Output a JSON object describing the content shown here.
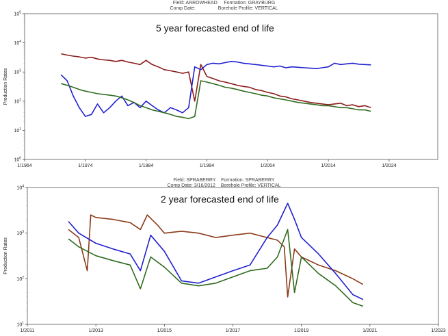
{
  "charts": [
    {
      "header": {
        "line1": "Field: ARROWHEAD     Formation: GRAYBURG",
        "line2": "Comp Date:                 Borehole Profile: VERTICAL"
      },
      "annotation": "5 year forecasted end of life",
      "ylabel": "Production Rates",
      "xticks": [
        "1/1964",
        "1/1974",
        "1/1984",
        "1/1994",
        "1/2004",
        "1/2014",
        "1/2024"
      ],
      "ytick_exponents": [
        "0",
        "1",
        "2",
        "3",
        "4",
        "5"
      ]
    },
    {
      "header": {
        "line1": "Field: SPRABERRY    Formation: SPRABERRY",
        "line2": "Comp Date: 3/16/2012    Borehole Profile: VERTICAL"
      },
      "annotation": "2 year forecasted end of life",
      "ylabel": "Production Rates",
      "xticks": [
        "1/2011",
        "1/2013",
        "1/2015",
        "1/2017",
        "1/2019",
        "1/2021",
        "1/2023"
      ],
      "ytick_exponents": [
        "1",
        "2",
        "3",
        "4"
      ]
    }
  ],
  "chart_data": [
    {
      "type": "line",
      "title": "",
      "xlabel": "",
      "ylabel": "Production Rates",
      "yscale": "log",
      "xlim": [
        1964,
        2032
      ],
      "ylim": [
        1,
        100000
      ],
      "series": [
        {
          "color": "#8b1a1a",
          "x": [
            1970,
            1971,
            1972,
            1973,
            1974,
            1975,
            1976,
            1977,
            1978,
            1979,
            1980,
            1981,
            1982,
            1983,
            1984,
            1985,
            1986,
            1987,
            1988,
            1989,
            1990,
            1991,
            1992,
            1993,
            1994,
            1995,
            1996,
            1997,
            1998,
            1999,
            2000,
            2001,
            2002,
            2003,
            2004,
            2005,
            2006,
            2007,
            2008,
            2009,
            2010,
            2011,
            2012,
            2013,
            2014,
            2015,
            2016,
            2017,
            2018,
            2019,
            2020,
            2021
          ],
          "y": [
            4200,
            3800,
            3500,
            3300,
            3000,
            3200,
            2800,
            2600,
            2500,
            2300,
            2500,
            2200,
            2000,
            1800,
            2500,
            1800,
            1500,
            1200,
            1100,
            1000,
            900,
            1000,
            100,
            1800,
            700,
            600,
            500,
            450,
            400,
            350,
            320,
            300,
            250,
            230,
            200,
            180,
            150,
            140,
            120,
            110,
            100,
            90,
            85,
            80,
            75,
            80,
            85,
            70,
            75,
            65,
            70,
            60
          ]
        },
        {
          "color": "#1f1fcf",
          "x": [
            1970,
            1971,
            1972,
            1973,
            1974,
            1975,
            1976,
            1977,
            1978,
            1979,
            1980,
            1981,
            1982,
            1983,
            1984,
            1985,
            1986,
            1987,
            1988,
            1989,
            1990,
            1991,
            1992,
            1993,
            1994,
            1995,
            1996,
            1997,
            1998,
            1999,
            2000,
            2001,
            2002,
            2003,
            2004,
            2005,
            2006,
            2007,
            2008,
            2009,
            2010,
            2011,
            2012,
            2013,
            2014,
            2015,
            2016,
            2017,
            2018,
            2019,
            2020,
            2021
          ],
          "y": [
            800,
            500,
            150,
            60,
            30,
            35,
            80,
            40,
            60,
            100,
            150,
            70,
            90,
            60,
            100,
            70,
            50,
            40,
            60,
            50,
            40,
            60,
            1500,
            1200,
            1800,
            2000,
            1900,
            2100,
            2300,
            2200,
            2000,
            1900,
            1800,
            1700,
            1600,
            1500,
            1600,
            1400,
            1500,
            1450,
            1400,
            1350,
            1300,
            1400,
            1500,
            2000,
            1800,
            1900,
            2000,
            1850,
            1800,
            1750
          ]
        },
        {
          "color": "#2e6b1f",
          "x": [
            1970,
            1971,
            1972,
            1973,
            1974,
            1975,
            1976,
            1977,
            1978,
            1979,
            1980,
            1981,
            1982,
            1983,
            1984,
            1985,
            1986,
            1987,
            1988,
            1989,
            1990,
            1991,
            1992,
            1993,
            1994,
            1995,
            1996,
            1997,
            1998,
            1999,
            2000,
            2001,
            2002,
            2003,
            2004,
            2005,
            2006,
            2007,
            2008,
            2009,
            2010,
            2011,
            2012,
            2013,
            2014,
            2015,
            2016,
            2017,
            2018,
            2019,
            2020,
            2021
          ],
          "y": [
            400,
            350,
            300,
            250,
            220,
            200,
            180,
            170,
            160,
            150,
            130,
            110,
            90,
            70,
            60,
            50,
            45,
            40,
            35,
            30,
            28,
            25,
            30,
            500,
            450,
            400,
            350,
            300,
            280,
            250,
            220,
            200,
            180,
            160,
            150,
            130,
            120,
            110,
            100,
            90,
            85,
            80,
            75,
            70,
            70,
            65,
            60,
            60,
            55,
            50,
            50,
            45
          ]
        }
      ]
    },
    {
      "type": "line",
      "title": "",
      "xlabel": "",
      "ylabel": "Production Rates",
      "yscale": "log",
      "xlim": [
        2011,
        2023
      ],
      "ylim": [
        10,
        10000
      ],
      "series": [
        {
          "color": "#8b3a1a",
          "x": [
            2012.2,
            2012.5,
            2012.75,
            2012.85,
            2013.0,
            2013.5,
            2014.0,
            2014.3,
            2014.5,
            2014.8,
            2015.0,
            2015.5,
            2016.0,
            2016.5,
            2017.0,
            2017.5,
            2018.0,
            2018.3,
            2018.5,
            2018.6,
            2018.8,
            2019.0,
            2019.5,
            2020.0,
            2020.5,
            2020.8
          ],
          "y": [
            1200,
            800,
            150,
            2500,
            2200,
            2000,
            1700,
            1200,
            2500,
            1500,
            1000,
            1100,
            1000,
            800,
            900,
            1000,
            800,
            700,
            500,
            40,
            450,
            300,
            200,
            150,
            100,
            75
          ]
        },
        {
          "color": "#1f1fcf",
          "x": [
            2012.2,
            2012.5,
            2013.0,
            2013.5,
            2014.0,
            2014.3,
            2014.6,
            2015.0,
            2015.5,
            2016.0,
            2016.5,
            2017.0,
            2017.5,
            2018.0,
            2018.3,
            2018.6,
            2018.8,
            2019.0,
            2019.5,
            2020.0,
            2020.5,
            2020.8
          ],
          "y": [
            1800,
            1000,
            600,
            450,
            350,
            150,
            900,
            400,
            90,
            80,
            110,
            150,
            200,
            800,
            1500,
            4500,
            2000,
            800,
            350,
            130,
            45,
            35
          ]
        },
        {
          "color": "#2e6b1f",
          "x": [
            2012.2,
            2012.5,
            2013.0,
            2013.5,
            2014.0,
            2014.3,
            2014.6,
            2015.0,
            2015.5,
            2016.0,
            2016.5,
            2017.0,
            2017.5,
            2018.0,
            2018.3,
            2018.6,
            2018.8,
            2019.0,
            2019.5,
            2020.0,
            2020.5,
            2020.8
          ],
          "y": [
            750,
            500,
            320,
            250,
            200,
            60,
            300,
            180,
            80,
            70,
            80,
            110,
            150,
            170,
            300,
            1200,
            50,
            300,
            130,
            70,
            30,
            25
          ]
        }
      ]
    }
  ]
}
